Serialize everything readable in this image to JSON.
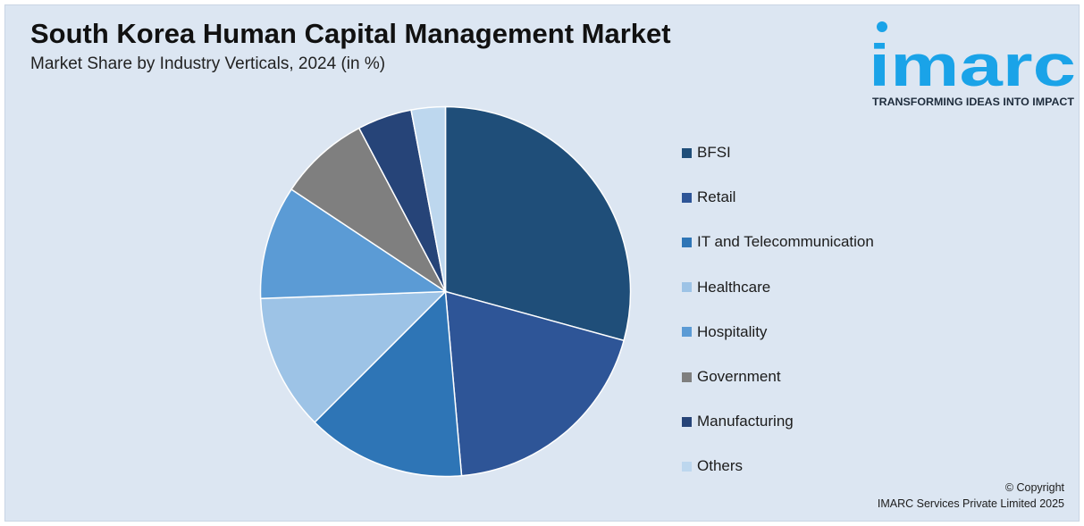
{
  "header": {
    "title": "South Korea Human Capital Management Market",
    "subtitle": "Market Share by Industry Verticals, 2024 (in %)"
  },
  "logo": {
    "wordmark": "imarc",
    "tagline": "TRANSFORMING IDEAS INTO IMPACT",
    "color": "#1aa3e8"
  },
  "footer": {
    "copyright": "© Copyright",
    "company": "IMARC Services Private Limited 2025"
  },
  "chart_data": {
    "type": "pie",
    "title": "South Korea Human Capital Management Market",
    "subtitle": "Market Share by Industry Verticals, 2024 (in %)",
    "legend_position": "right",
    "categories": [
      "BFSI",
      "Retail",
      "IT and Telecommunication",
      "Healthcare",
      "Hospitality",
      "Government",
      "Manufacturing",
      "Others"
    ],
    "values": [
      29.5,
      19.5,
      14.0,
      12.0,
      10.0,
      8.0,
      4.8,
      3.0
    ],
    "colors": [
      "#1f4e79",
      "#2e5597",
      "#2e75b6",
      "#9dc3e6",
      "#5b9bd5",
      "#7f7f7f",
      "#264478",
      "#bdd7ee"
    ]
  }
}
